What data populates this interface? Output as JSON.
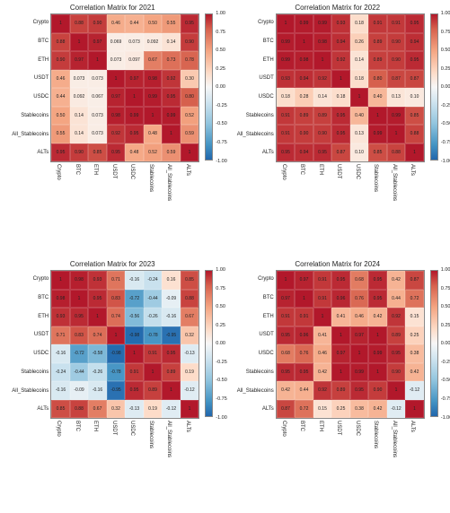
{
  "labels": [
    "Crypto",
    "BTC",
    "ETH",
    "USDT",
    "USDC",
    "Stablecoins",
    "All_Stablecoins",
    "ALTs"
  ],
  "colorbar_ticks": [
    "1.00",
    "0.75",
    "0.50",
    "0.25",
    "0.00",
    "-0.25",
    "-0.50",
    "-0.75",
    "-1.00"
  ],
  "color_stops": [
    {
      "t": 0.0,
      "c": "#b2182b"
    },
    {
      "t": 0.1,
      "c": "#d6604d"
    },
    {
      "t": 0.25,
      "c": "#f4a582"
    },
    {
      "t": 0.4,
      "c": "#fddbc7"
    },
    {
      "t": 0.5,
      "c": "#f7f7f7"
    },
    {
      "t": 0.6,
      "c": "#d1e5f0"
    },
    {
      "t": 0.75,
      "c": "#92c5de"
    },
    {
      "t": 0.9,
      "c": "#4393c3"
    },
    {
      "t": 1.0,
      "c": "#2166ac"
    }
  ],
  "panels": [
    {
      "title": "Correlation Matrix for 2021",
      "data": [
        [
          1,
          0.88,
          0.9,
          0.46,
          0.44,
          0.5,
          0.55,
          0.95
        ],
        [
          0.88,
          1,
          0.97,
          0.069,
          0.073,
          0.092,
          0.14,
          0.9
        ],
        [
          0.9,
          0.97,
          1,
          0.073,
          0.097,
          0.67,
          0.73,
          0.78
        ],
        [
          0.46,
          0.073,
          0.073,
          1,
          0.97,
          0.98,
          0.92,
          0.3
        ],
        [
          0.44,
          0.092,
          0.067,
          0.97,
          1,
          0.99,
          0.95,
          0.8
        ],
        [
          0.5,
          0.14,
          0.073,
          0.98,
          0.99,
          1,
          0.99,
          0.52
        ],
        [
          0.55,
          0.14,
          0.073,
          0.92,
          0.95,
          0.48,
          1,
          0.59
        ],
        [
          0.95,
          0.9,
          0.85,
          0.95,
          0.48,
          0.52,
          0.59,
          1
        ]
      ]
    },
    {
      "title": "Correlation Matrix for 2022",
      "data": [
        [
          1,
          0.99,
          0.99,
          0.93,
          0.18,
          0.91,
          0.91,
          0.95
        ],
        [
          0.99,
          1,
          0.98,
          0.94,
          0.26,
          0.89,
          0.9,
          0.94
        ],
        [
          0.99,
          0.98,
          1,
          0.92,
          0.14,
          0.89,
          0.9,
          0.95
        ],
        [
          0.93,
          0.94,
          0.92,
          1,
          0.18,
          0.8,
          0.87,
          0.87
        ],
        [
          0.18,
          0.28,
          0.14,
          0.18,
          1,
          0.4,
          0.13,
          0.1
        ],
        [
          0.91,
          0.89,
          0.89,
          0.95,
          0.4,
          1,
          0.99,
          0.85
        ],
        [
          0.91,
          0.9,
          0.9,
          0.95,
          0.13,
          0.99,
          1,
          0.88
        ],
        [
          0.95,
          0.94,
          0.95,
          0.87,
          0.1,
          0.85,
          0.88,
          1
        ]
      ]
    },
    {
      "title": "Correlation Matrix for 2023",
      "data": [
        [
          1,
          0.98,
          0.93,
          0.71,
          -0.16,
          -0.24,
          0.16,
          0.85
        ],
        [
          0.98,
          1,
          0.95,
          0.83,
          -0.72,
          -0.44,
          -0.09,
          0.88
        ],
        [
          0.93,
          0.95,
          1,
          0.74,
          -0.56,
          -0.26,
          -0.16,
          0.67
        ],
        [
          0.71,
          0.83,
          0.74,
          1,
          -0.98,
          -0.78,
          -0.95,
          0.32
        ],
        [
          -0.16,
          -0.72,
          -0.58,
          -0.98,
          1,
          0.91,
          0.95,
          -0.13
        ],
        [
          -0.24,
          -0.44,
          -0.26,
          -0.78,
          0.91,
          1,
          0.89,
          0.19
        ],
        [
          -0.16,
          -0.09,
          -0.16,
          -0.95,
          0.95,
          0.89,
          1,
          -0.12
        ],
        [
          0.85,
          0.88,
          0.67,
          0.32,
          -0.13,
          0.19,
          -0.12,
          1
        ]
      ]
    },
    {
      "title": "Correlation Matrix for 2024",
      "data": [
        [
          1,
          0.97,
          0.91,
          0.95,
          0.68,
          0.95,
          0.42,
          0.87
        ],
        [
          0.97,
          1,
          0.91,
          0.96,
          0.76,
          0.95,
          0.44,
          0.72
        ],
        [
          0.91,
          0.91,
          1,
          0.41,
          0.46,
          0.42,
          0.92,
          0.15
        ],
        [
          0.95,
          0.96,
          0.41,
          1,
          0.97,
          1,
          0.89,
          0.25
        ],
        [
          0.68,
          0.76,
          0.46,
          0.97,
          1,
          0.99,
          0.95,
          0.38
        ],
        [
          0.95,
          0.95,
          0.42,
          1,
          0.99,
          1,
          0.9,
          0.42
        ],
        [
          0.42,
          0.44,
          0.92,
          0.89,
          0.95,
          0.9,
          1,
          -0.12
        ],
        [
          0.87,
          0.72,
          0.15,
          0.25,
          0.38,
          0.42,
          -0.12,
          1
        ]
      ]
    }
  ]
}
